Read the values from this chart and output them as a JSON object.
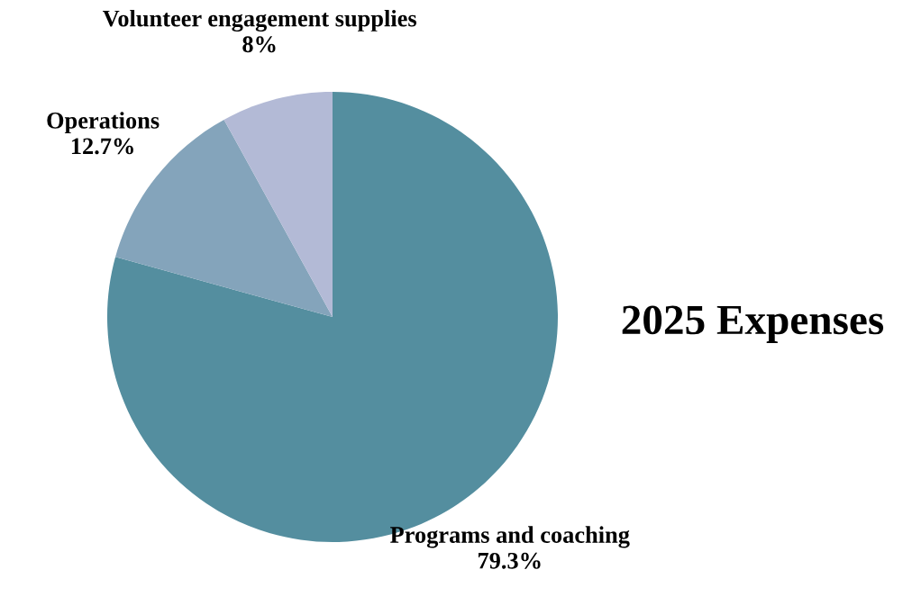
{
  "chart_data": {
    "type": "pie",
    "title": "2025 Expenses",
    "categories": [
      "Programs and coaching",
      "Operations",
      "Volunteer engagement supplies"
    ],
    "values": [
      79.3,
      12.7,
      8
    ],
    "value_labels": [
      "79.3%",
      "12.7%",
      "8%"
    ],
    "colors": [
      "#548e9f",
      "#84a4bb",
      "#b3bad6"
    ]
  }
}
